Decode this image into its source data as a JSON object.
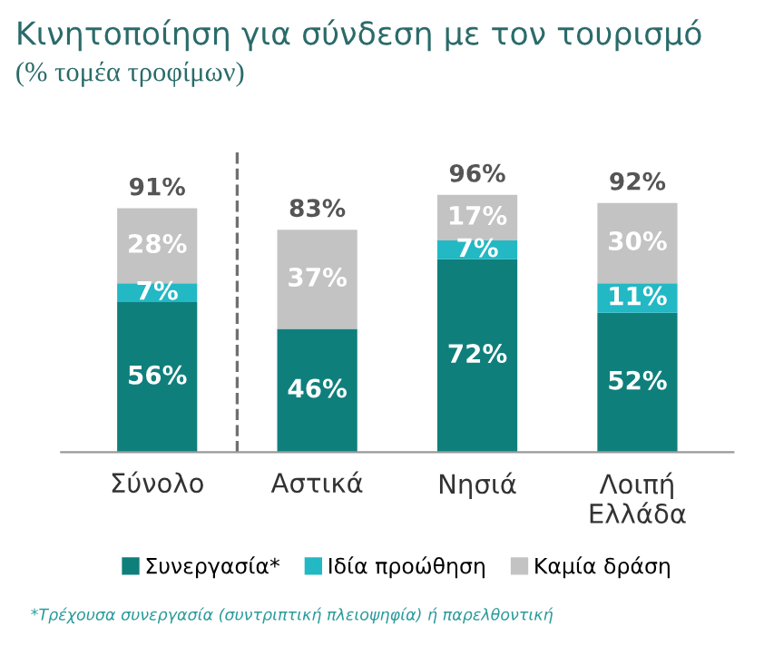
{
  "chart_data": {
    "type": "bar",
    "stacked": true,
    "title": "Κινητοποίηση για σύνδεση με τον τουρισμό",
    "subtitle": "(% τομέα τροφίμων)",
    "categories": [
      "Σύνολο",
      "Αστικά",
      "Νησιά",
      "Λοιπή\nΕλλάδα"
    ],
    "series": [
      {
        "name": "Συνεργασία*",
        "color": "#0f7f7c",
        "values": [
          56,
          46,
          72,
          52
        ],
        "value_labels": [
          "56%",
          "46%",
          "72%",
          "52%"
        ]
      },
      {
        "name": "Ιδία προώθηση",
        "color": "#22b8c4",
        "values": [
          7,
          null,
          7,
          11
        ],
        "value_labels": [
          "7%",
          null,
          "7%",
          "11%"
        ]
      },
      {
        "name": "Καμία δράση",
        "color": "#c3c3c3",
        "values": [
          28,
          37,
          17,
          30
        ],
        "value_labels": [
          "28%",
          "37%",
          "17%",
          "30%"
        ]
      }
    ],
    "totals": [
      "91%",
      "83%",
      "96%",
      "92%"
    ],
    "legend": "bottom",
    "grid": false,
    "annotations": [
      "*Τρέχουσα συνεργασία (συντριπτική πλειοψηφία) ή παρελθοντική"
    ]
  }
}
